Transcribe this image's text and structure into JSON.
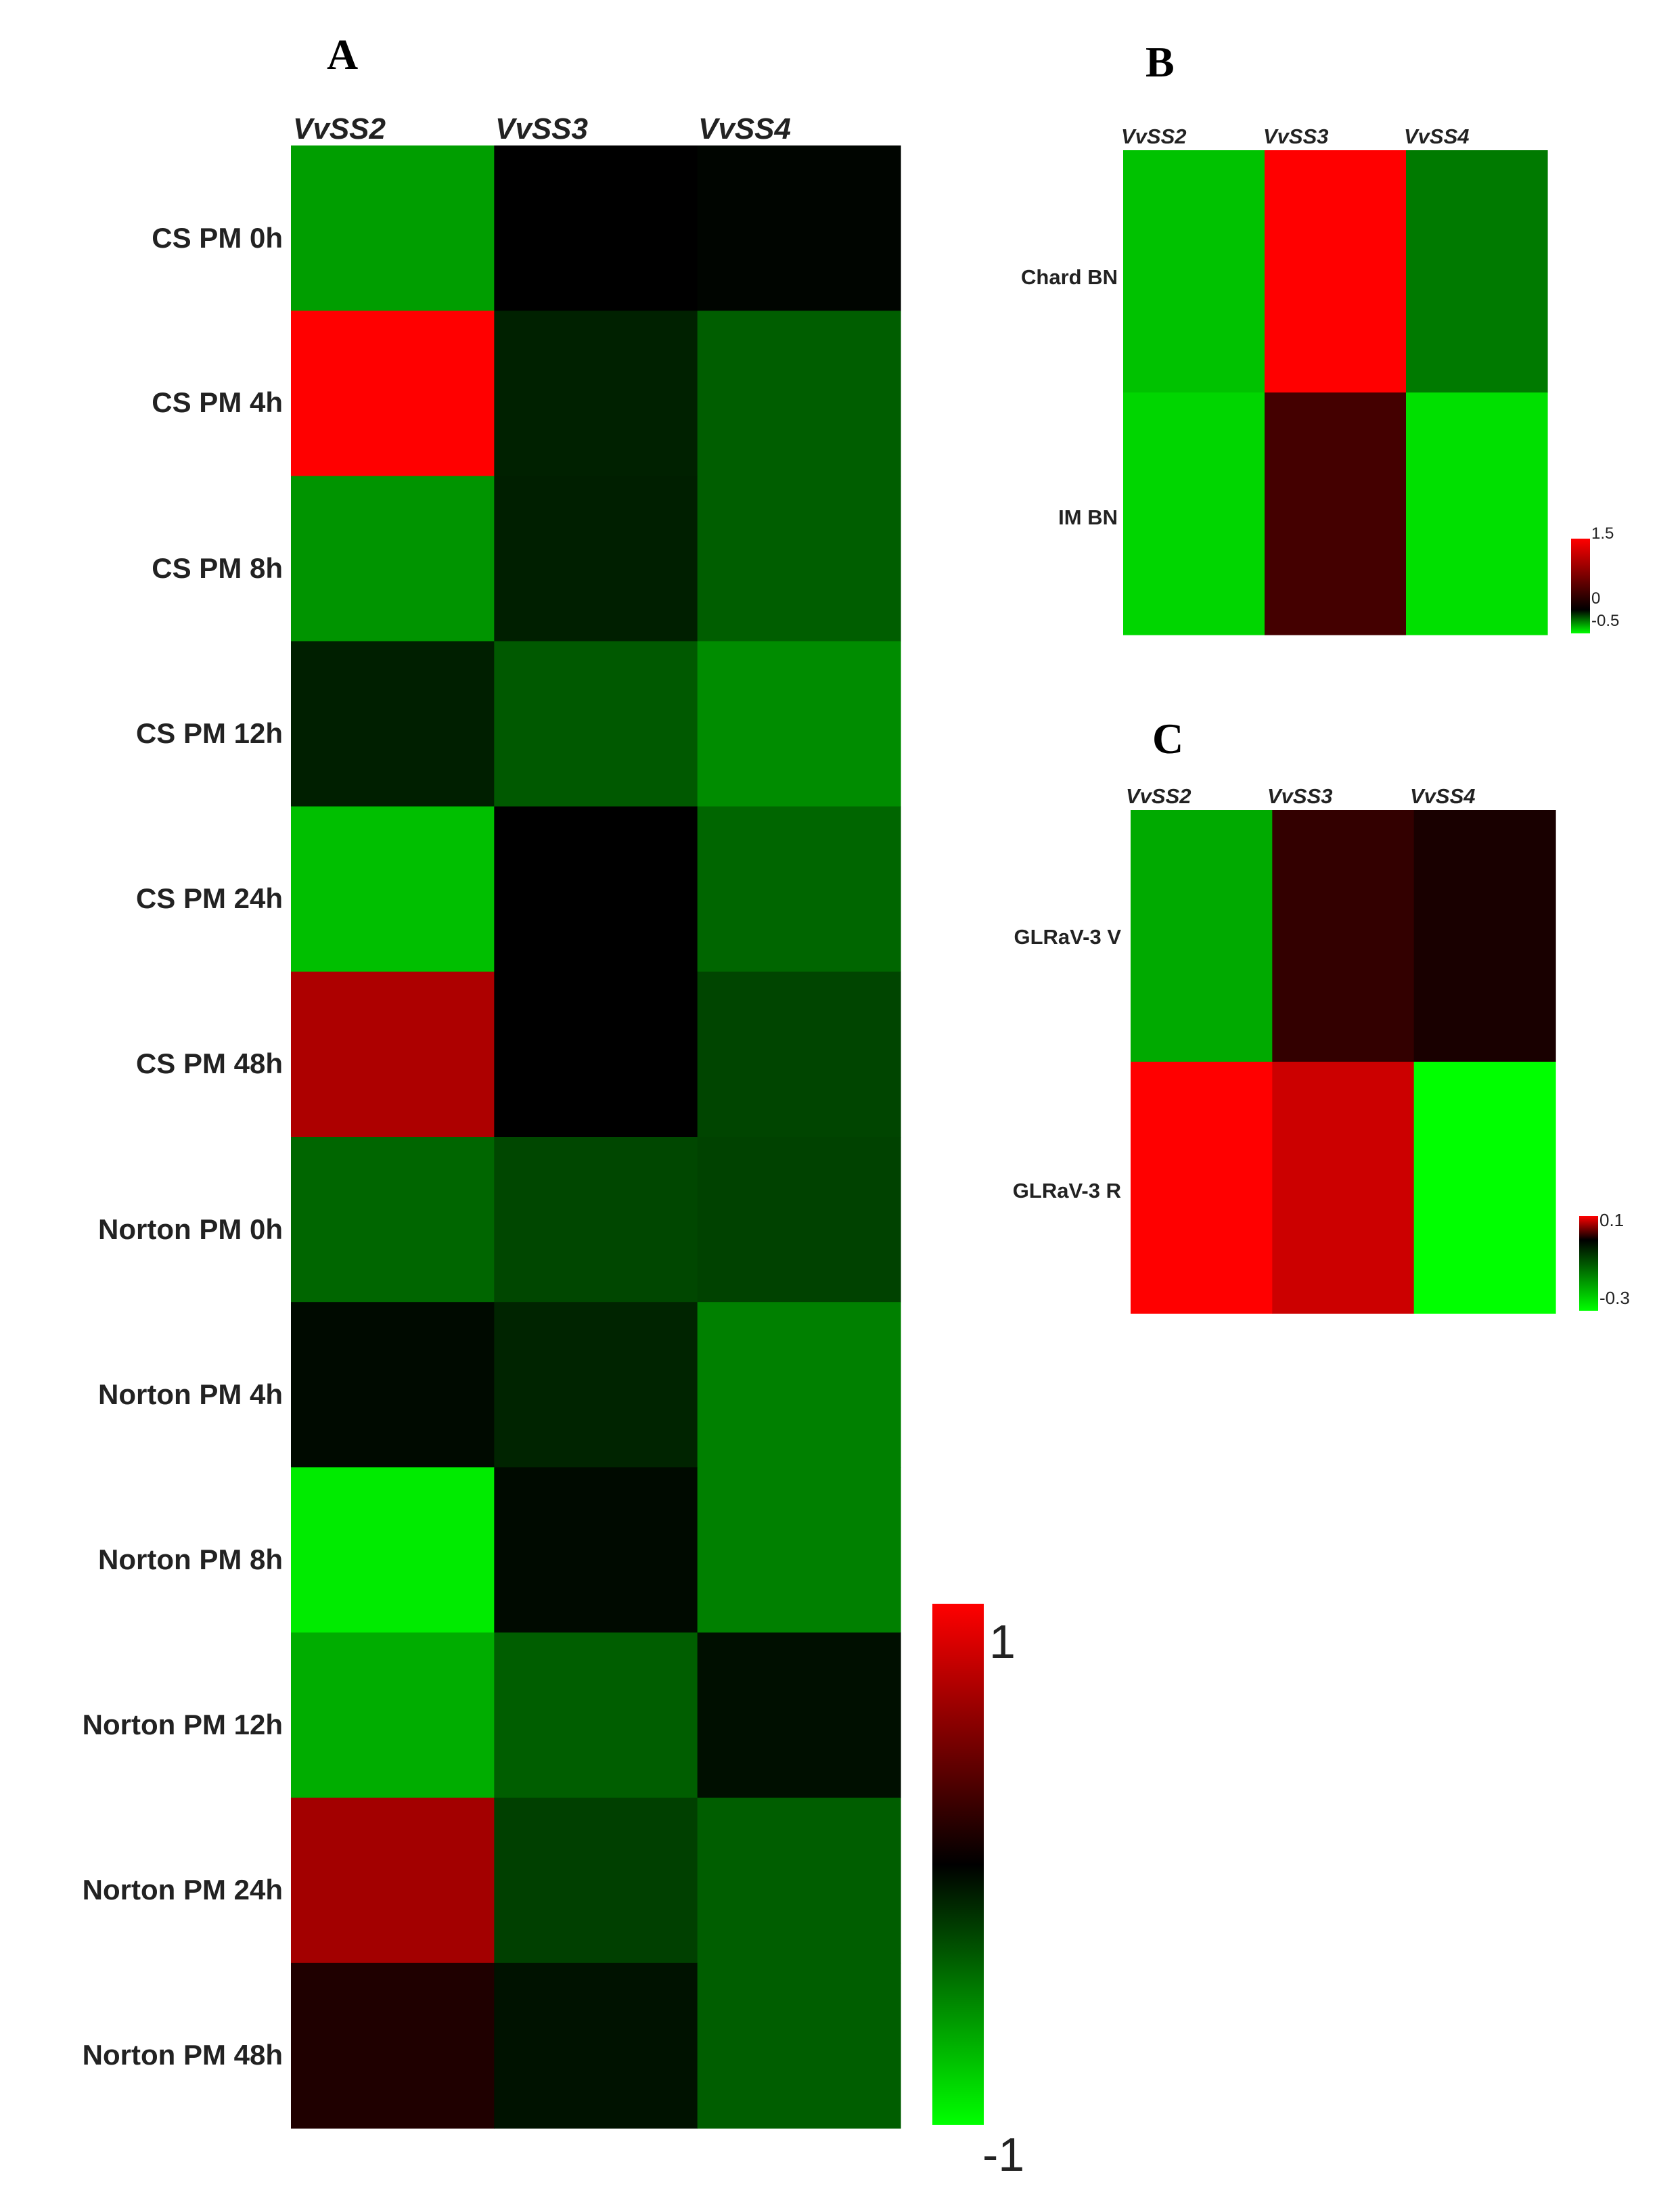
{
  "colors": {
    "high": "#ff0000",
    "mid": "#000000",
    "low": "#00ff00"
  },
  "chart_data": [
    {
      "panel": "A",
      "type": "heatmap",
      "columns": [
        "VvSS2",
        "VvSS3",
        "VvSS4"
      ],
      "rows": [
        "CS PM 0h",
        "CS PM 4h",
        "CS PM 8h",
        "CS PM 12h",
        "CS PM 24h",
        "CS PM 48h",
        "Norton PM 0h",
        "Norton PM 4h",
        "Norton PM 8h",
        "Norton PM 12h",
        "Norton PM 24h",
        "Norton PM 48h"
      ],
      "values": [
        [
          -0.62,
          0.0,
          -0.02
        ],
        [
          1.0,
          -0.13,
          -0.37
        ],
        [
          -0.58,
          -0.12,
          -0.37
        ],
        [
          -0.12,
          -0.35,
          -0.55
        ],
        [
          -0.75,
          0.0,
          -0.4
        ],
        [
          0.68,
          0.0,
          -0.27
        ],
        [
          -0.4,
          -0.28,
          -0.26
        ],
        [
          -0.04,
          -0.14,
          -0.5
        ],
        [
          -0.92,
          -0.04,
          -0.5
        ],
        [
          -0.68,
          -0.37,
          -0.06
        ],
        [
          0.64,
          -0.25,
          -0.37
        ],
        [
          0.12,
          -0.07,
          -0.37
        ]
      ],
      "scale": {
        "min": -1,
        "max": 1,
        "ticks": [
          "1",
          "-1"
        ]
      }
    },
    {
      "panel": "B",
      "type": "heatmap",
      "columns": [
        "VvSS2",
        "VvSS3",
        "VvSS4"
      ],
      "rows": [
        "Chard BN",
        "IM BN"
      ],
      "values": [
        [
          -0.38,
          1.5,
          -0.24
        ],
        [
          -0.42,
          0.4,
          -0.44
        ]
      ],
      "scale": {
        "min": -0.5,
        "max": 1.5,
        "ticks": [
          "1.5",
          "0",
          "-0.5"
        ]
      }
    },
    {
      "panel": "C",
      "type": "heatmap",
      "columns": [
        "VvSS2",
        "VvSS3",
        "VvSS4"
      ],
      "rows": [
        "GLRaV-3 V",
        "GLRaV-3 R"
      ],
      "values": [
        [
          -0.2,
          0.02,
          0.01
        ],
        [
          0.1,
          0.08,
          -0.3
        ]
      ],
      "scale": {
        "min": -0.3,
        "max": 0.1,
        "ticks": [
          "0.1",
          "-0.3"
        ]
      }
    }
  ]
}
